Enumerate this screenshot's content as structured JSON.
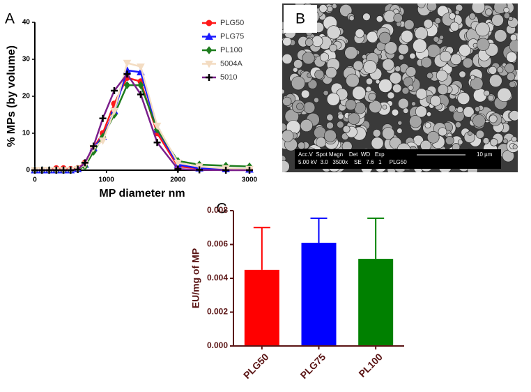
{
  "chart_data": [
    {
      "type": "line",
      "panel_label": "A",
      "xlabel": "MP diameter nm",
      "ylabel": "% MPs (by volume)",
      "xlim": [
        0,
        3000
      ],
      "xticks": [
        0,
        1000,
        2000,
        3000
      ],
      "ylim": [
        0,
        40
      ],
      "yticks": [
        0,
        10,
        20,
        30,
        40
      ],
      "legend": "upper right",
      "x": [
        0,
        100,
        200,
        300,
        400,
        500,
        600,
        700,
        820,
        950,
        1110,
        1290,
        1480,
        1710,
        2000,
        2300,
        2670,
        3000
      ],
      "series": [
        {
          "name": "PLG50",
          "color": "#ff1a1a",
          "marker": "circle",
          "values": [
            0,
            0,
            0,
            0.5,
            0.5,
            0.3,
            0.5,
            2,
            6,
            10,
            18,
            25,
            24,
            10,
            1,
            0.5,
            0.3,
            0.2
          ]
        },
        {
          "name": "PLG75",
          "color": "#1a1aff",
          "marker": "triangle",
          "values": [
            0,
            0,
            0,
            0,
            0,
            0,
            0.3,
            1.5,
            6,
            9,
            16,
            27,
            26.5,
            11,
            1.5,
            0.5,
            0.3,
            0.2
          ]
        },
        {
          "name": "PL100",
          "color": "#1e7d1e",
          "marker": "diamond",
          "values": [
            0,
            0,
            0,
            0,
            0,
            0,
            0.3,
            1,
            5,
            9,
            15,
            23,
            23,
            11,
            2.5,
            1.5,
            1.2,
            1
          ]
        },
        {
          "name": "5004A",
          "color": "#f3dcc2",
          "marker": "triangle-down",
          "values": [
            0,
            0,
            0,
            0,
            0,
            0,
            0.3,
            1.5,
            6,
            8,
            16,
            29,
            28,
            12,
            2,
            1,
            0.5,
            0.3
          ]
        },
        {
          "name": "5010",
          "color": "#7b1f8c",
          "marker": "plus",
          "marker_color": "#000000",
          "values": [
            0,
            0,
            0,
            0,
            0,
            0,
            0.2,
            2,
            6.5,
            14,
            21.5,
            26,
            20.5,
            7.5,
            0.3,
            0.1,
            0,
            0
          ]
        }
      ]
    },
    {
      "type": "bar",
      "panel_label": "C",
      "ylabel": "EU/mg of MP",
      "axis_color": "#5a1414",
      "categories": [
        "PLG50",
        "PLG75",
        "PL100"
      ],
      "values": [
        0.0045,
        0.0061,
        0.00515
      ],
      "errors": [
        0.0025,
        0.00145,
        0.0024
      ],
      "colors": [
        "#ff0000",
        "#0000ff",
        "#008000"
      ],
      "ylim": [
        0,
        0.008
      ],
      "yticks": [
        {
          "value": 0,
          "label": "0.000"
        },
        {
          "value": 0.002,
          "label": "0.002"
        },
        {
          "value": 0.004,
          "label": "0.004"
        },
        {
          "value": 0.006,
          "label": "0.006"
        },
        {
          "value": 0.008,
          "label": "0.008"
        }
      ]
    }
  ],
  "image": {
    "panel_label": "B",
    "info_header": "Acc.V  Spot Magn    Det  WD   Exp",
    "info_values": "5.00 kV  3.0   3500x    SE   7.6   1     PLG50",
    "scale": "10 µm"
  }
}
